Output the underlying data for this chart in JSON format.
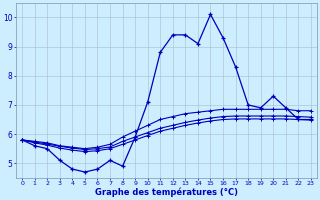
{
  "hours": [
    0,
    1,
    2,
    3,
    4,
    5,
    6,
    7,
    8,
    9,
    10,
    11,
    12,
    13,
    14,
    15,
    16,
    17,
    18,
    19,
    20,
    21,
    22,
    23
  ],
  "temp_current": [
    5.8,
    5.6,
    5.5,
    5.1,
    4.8,
    4.7,
    4.8,
    5.1,
    4.9,
    5.9,
    7.1,
    8.8,
    9.4,
    9.4,
    9.1,
    10.1,
    9.3,
    8.3,
    7.0,
    6.9,
    7.3,
    6.9,
    6.5,
    6.5
  ],
  "temp_line2": [
    5.8,
    5.75,
    5.7,
    5.6,
    5.55,
    5.5,
    5.55,
    5.65,
    5.9,
    6.1,
    6.3,
    6.5,
    6.6,
    6.7,
    6.75,
    6.8,
    6.85,
    6.85,
    6.85,
    6.85,
    6.85,
    6.85,
    6.8,
    6.8
  ],
  "temp_line3": [
    5.8,
    5.73,
    5.66,
    5.58,
    5.52,
    5.47,
    5.5,
    5.56,
    5.75,
    5.9,
    6.05,
    6.2,
    6.3,
    6.4,
    6.48,
    6.55,
    6.6,
    6.62,
    6.62,
    6.62,
    6.62,
    6.62,
    6.6,
    6.58
  ],
  "temp_line4": [
    5.8,
    5.7,
    5.62,
    5.52,
    5.45,
    5.4,
    5.43,
    5.5,
    5.65,
    5.8,
    5.95,
    6.1,
    6.2,
    6.3,
    6.38,
    6.45,
    6.5,
    6.52,
    6.52,
    6.52,
    6.52,
    6.52,
    6.5,
    6.48
  ],
  "line_color": "#0000bb",
  "bg_color": "#cceeff",
  "grid_color": "#aabbcc",
  "xlabel": "Graphe des températures (°C)",
  "ylim": [
    4.5,
    10.5
  ],
  "yticks": [
    5,
    6,
    7,
    8,
    9,
    10
  ],
  "xlim": [
    -0.5,
    23.5
  ]
}
